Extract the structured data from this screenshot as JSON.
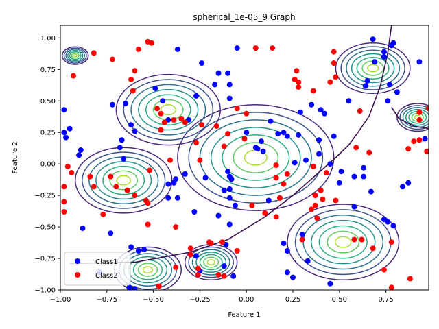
{
  "chart_data": {
    "type": "scatter",
    "title": "spherical_1e-05_9 Graph",
    "xlabel": "Feature 1",
    "ylabel": "Feature 2",
    "xlim": [
      -1.0,
      0.98
    ],
    "ylim": [
      -1.0,
      1.1
    ],
    "xticks": [
      -1.0,
      -0.75,
      -0.5,
      -0.25,
      0.0,
      0.25,
      0.5,
      0.75
    ],
    "yticks": [
      -1.0,
      -0.75,
      -0.5,
      -0.25,
      0.0,
      0.25,
      0.5,
      0.75,
      1.0
    ],
    "xtick_labels": [
      "−1.00",
      "−0.75",
      "−0.50",
      "−0.25",
      "0.00",
      "0.25",
      "0.50",
      "0.75"
    ],
    "ytick_labels": [
      "−1.00",
      "−0.75",
      "−0.50",
      "−0.25",
      "0.00",
      "0.25",
      "0.50",
      "0.75",
      "1.00"
    ],
    "grid": false,
    "legend_position": "lower-left",
    "colors": {
      "class1": "#0000ff",
      "class2": "#ff0000",
      "boundary": "#3b0f4f"
    },
    "contour_colors": [
      "#472a7a",
      "#3b528b",
      "#2c728e",
      "#21918c",
      "#28ae80",
      "#5ec962",
      "#addc30"
    ],
    "gaussian_components": [
      {
        "center": [
          0.05,
          0.05
        ],
        "radius": 0.42
      },
      {
        "center": [
          -0.42,
          0.43
        ],
        "radius": 0.28
      },
      {
        "center": [
          -0.66,
          -0.13
        ],
        "radius": 0.26
      },
      {
        "center": [
          0.52,
          -0.62
        ],
        "radius": 0.3
      },
      {
        "center": [
          0.68,
          0.76
        ],
        "radius": 0.2
      },
      {
        "center": [
          0.92,
          0.37
        ],
        "radius": 0.11
      },
      {
        "center": [
          -0.92,
          0.86
        ],
        "radius": 0.07
      },
      {
        "center": [
          -0.19,
          -0.78
        ],
        "radius": 0.14
      },
      {
        "center": [
          -0.53,
          -0.84
        ],
        "radius": 0.18
      }
    ],
    "decision_boundary": [
      [
        -0.95,
        -0.79
      ],
      [
        -0.6,
        -0.78
      ],
      [
        -0.3,
        -0.7
      ],
      [
        -0.1,
        -0.6
      ],
      [
        0.1,
        -0.42
      ],
      [
        0.25,
        -0.25
      ],
      [
        0.38,
        -0.08
      ],
      [
        0.48,
        0.05
      ],
      [
        0.55,
        0.15
      ],
      [
        0.6,
        0.25
      ],
      [
        0.66,
        0.38
      ],
      [
        0.72,
        0.62
      ],
      [
        0.76,
        0.88
      ],
      [
        0.78,
        1.1
      ]
    ],
    "boundary2": [
      [
        0.78,
        0.45
      ],
      [
        0.82,
        0.36
      ],
      [
        0.9,
        0.3
      ],
      [
        0.98,
        0.28
      ]
    ],
    "series": [
      {
        "name": "Class1",
        "color": "#0000ff",
        "points": [
          [
            -0.98,
            0.43
          ],
          [
            -0.98,
            0.25
          ],
          [
            -0.97,
            0.21
          ],
          [
            -0.95,
            0.28
          ],
          [
            -0.9,
            0.07
          ],
          [
            -0.89,
            0.11
          ],
          [
            -0.88,
            -0.51
          ],
          [
            -0.72,
            0.47
          ],
          [
            -0.68,
            0.13
          ],
          [
            -0.67,
            0.19
          ],
          [
            -0.65,
            0.48
          ],
          [
            -0.62,
            0.31
          ],
          [
            -0.6,
            0.26
          ],
          [
            -0.49,
            0.6
          ],
          [
            -0.45,
            0.5
          ],
          [
            -0.42,
            0.35
          ],
          [
            -0.37,
            0.91
          ],
          [
            -0.31,
            0.35
          ],
          [
            -0.27,
            0.54
          ],
          [
            -0.24,
            0.8
          ],
          [
            -0.22,
            -0.11
          ],
          [
            -0.17,
            0.63
          ],
          [
            -0.15,
            0.72
          ],
          [
            -0.1,
            0.72
          ],
          [
            -0.09,
            0.52
          ],
          [
            -0.09,
            0.63
          ],
          [
            -0.05,
            0.92
          ],
          [
            -0.38,
            -0.12
          ],
          [
            -0.39,
            -0.15
          ],
          [
            -0.42,
            -0.16
          ],
          [
            -0.42,
            -0.27
          ],
          [
            -0.37,
            -0.27
          ],
          [
            -0.33,
            -0.08
          ],
          [
            -0.28,
            -0.38
          ],
          [
            -0.15,
            -0.41
          ],
          [
            -0.12,
            -0.21
          ],
          [
            -0.1,
            -0.06
          ],
          [
            -0.09,
            -0.1
          ],
          [
            -0.08,
            -0.12
          ],
          [
            -0.09,
            -0.2
          ],
          [
            -0.09,
            -0.27
          ],
          [
            -0.06,
            -0.33
          ],
          [
            -0.09,
            -0.48
          ],
          [
            0.0,
            0.25
          ],
          [
            0.05,
            0.13
          ],
          [
            0.06,
            0.12
          ],
          [
            0.08,
            0.18
          ],
          [
            0.09,
            0.1
          ],
          [
            0.13,
            0.34
          ],
          [
            0.17,
            0.24
          ],
          [
            0.2,
            0.25
          ],
          [
            0.22,
            0.22
          ],
          [
            0.26,
            0.01
          ],
          [
            0.28,
            0.23
          ],
          [
            0.29,
            0.41
          ],
          [
            0.32,
            0.03
          ],
          [
            0.35,
            0.47
          ],
          [
            0.39,
            0.19
          ],
          [
            0.39,
            0.08
          ],
          [
            0.4,
            0.43
          ],
          [
            0.42,
            0.4
          ],
          [
            0.45,
            0.0
          ],
          [
            0.47,
            0.22
          ],
          [
            0.5,
            -0.15
          ],
          [
            0.51,
            -0.06
          ],
          [
            0.55,
            0.5
          ],
          [
            0.58,
            -0.1
          ],
          [
            0.63,
            -0.03
          ],
          [
            0.63,
            -0.1
          ],
          [
            0.65,
            0.66
          ],
          [
            0.64,
            0.62
          ],
          [
            0.67,
            -0.22
          ],
          [
            0.68,
            0.99
          ],
          [
            0.69,
            0.81
          ],
          [
            0.74,
            0.89
          ],
          [
            0.74,
            0.85
          ],
          [
            0.76,
            0.5
          ],
          [
            0.77,
            0.63
          ],
          [
            0.78,
            0.94
          ],
          [
            0.79,
            0.96
          ],
          [
            0.81,
            0.57
          ],
          [
            0.84,
            -0.18
          ],
          [
            0.87,
            -0.15
          ],
          [
            0.93,
            0.81
          ],
          [
            0.96,
            0.2
          ],
          [
            0.45,
            -0.95
          ],
          [
            0.58,
            -0.34
          ],
          [
            0.74,
            -0.44
          ],
          [
            0.76,
            -0.46
          ],
          [
            0.79,
            -0.49
          ],
          [
            0.2,
            -0.63
          ],
          [
            0.22,
            -0.69
          ],
          [
            0.25,
            -0.9
          ],
          [
            0.3,
            -0.56
          ],
          [
            0.33,
            -0.77
          ],
          [
            0.22,
            -0.86
          ],
          [
            0.12,
            -0.29
          ],
          [
            -0.07,
            -0.89
          ],
          [
            -0.11,
            -0.64
          ],
          [
            -0.12,
            -0.81
          ],
          [
            -0.25,
            -0.85
          ],
          [
            -0.27,
            -0.73
          ],
          [
            -0.38,
            -0.12
          ],
          [
            -0.55,
            -0.68
          ],
          [
            -0.58,
            -0.69
          ],
          [
            -0.62,
            -0.66
          ],
          [
            -0.63,
            -0.98
          ],
          [
            -0.6,
            -0.99
          ],
          [
            -0.73,
            -0.55
          ],
          [
            -0.79,
            -0.86
          ],
          [
            -0.66,
            0.04
          ]
        ]
      },
      {
        "name": "Class2",
        "color": "#ff0000",
        "points": [
          [
            -0.96,
            -0.02
          ],
          [
            -0.98,
            -0.18
          ],
          [
            -0.98,
            -0.3
          ],
          [
            -0.98,
            -0.38
          ],
          [
            -0.94,
            -0.07
          ],
          [
            -0.84,
            -0.1
          ],
          [
            -0.82,
            -0.18
          ],
          [
            -0.77,
            -0.4
          ],
          [
            -0.73,
            -0.1
          ],
          [
            -0.7,
            -0.18
          ],
          [
            -0.64,
            -0.21
          ],
          [
            -0.6,
            -0.25
          ],
          [
            -0.52,
            -0.05
          ],
          [
            -0.54,
            -0.29
          ],
          [
            -0.53,
            -0.31
          ],
          [
            -0.53,
            -0.48
          ],
          [
            -0.38,
            -0.5
          ],
          [
            -0.41,
            0.03
          ],
          [
            -0.35,
            0.36
          ],
          [
            -0.33,
            0.33
          ],
          [
            -0.27,
            0.17
          ],
          [
            -0.24,
            0.31
          ],
          [
            -0.25,
            0.03
          ],
          [
            -0.16,
            0.3
          ],
          [
            -0.12,
            0.14
          ],
          [
            -0.1,
            0.24
          ],
          [
            -0.05,
            0.44
          ],
          [
            0.0,
            0.4
          ],
          [
            -0.01,
            0.2
          ],
          [
            0.05,
            0.92
          ],
          [
            0.14,
            0.92
          ],
          [
            0.16,
            -0.01
          ],
          [
            0.16,
            -0.11
          ],
          [
            0.18,
            -0.27
          ],
          [
            0.2,
            -0.16
          ],
          [
            0.22,
            -0.08
          ],
          [
            0.26,
            0.67
          ],
          [
            0.27,
            0.74
          ],
          [
            0.28,
            0.61
          ],
          [
            0.28,
            0.65
          ],
          [
            0.36,
            0.58
          ],
          [
            0.36,
            -0.02
          ],
          [
            0.37,
            -0.25
          ],
          [
            0.37,
            -0.33
          ],
          [
            0.38,
            -0.43
          ],
          [
            0.4,
            -0.21
          ],
          [
            0.41,
            -0.28
          ],
          [
            0.43,
            -0.07
          ],
          [
            0.45,
            0.65
          ],
          [
            0.47,
            0.89
          ],
          [
            0.47,
            0.8
          ],
          [
            0.48,
            -0.29
          ],
          [
            0.48,
            0.69
          ],
          [
            0.59,
            0.13
          ],
          [
            0.61,
            0.42
          ],
          [
            0.66,
            0.09
          ],
          [
            0.58,
            -0.6
          ],
          [
            0.62,
            -0.6
          ],
          [
            0.68,
            -0.67
          ],
          [
            0.74,
            -0.84
          ],
          [
            0.78,
            -0.62
          ],
          [
            0.78,
            -0.98
          ],
          [
            0.87,
            0.12
          ],
          [
            0.88,
            -0.91
          ],
          [
            0.93,
            0.35
          ],
          [
            0.93,
            0.41
          ],
          [
            0.97,
            0.1
          ],
          [
            0.98,
            0.44
          ],
          [
            0.9,
            0.18
          ],
          [
            0.93,
            0.19
          ],
          [
            -0.82,
            0.88
          ],
          [
            -0.93,
            0.7
          ],
          [
            -0.72,
            0.83
          ],
          [
            -0.62,
            0.67
          ],
          [
            -0.61,
            0.58
          ],
          [
            -0.6,
            0.74
          ],
          [
            -0.58,
            0.91
          ],
          [
            -0.53,
            0.97
          ],
          [
            -0.51,
            0.96
          ],
          [
            -0.48,
            0.44
          ],
          [
            -0.46,
            0.4
          ],
          [
            -0.46,
            0.27
          ],
          [
            -0.44,
            0.33
          ],
          [
            -0.39,
            0.35
          ],
          [
            -0.3,
            -0.67
          ],
          [
            -0.3,
            -0.72
          ],
          [
            -0.2,
            -0.62
          ],
          [
            -0.13,
            -0.62
          ],
          [
            -0.15,
            -0.88
          ],
          [
            -0.12,
            -0.89
          ],
          [
            -0.05,
            -0.69
          ],
          [
            -0.26,
            -0.88
          ],
          [
            -0.26,
            -0.83
          ],
          [
            -0.38,
            -0.82
          ],
          [
            -0.47,
            -0.97
          ],
          [
            -0.19,
            -0.63
          ],
          [
            0.03,
            -0.33
          ],
          [
            0.1,
            -0.39
          ],
          [
            0.16,
            -0.42
          ],
          [
            0.3,
            -0.6
          ],
          [
            0.35,
            -0.36
          ]
        ]
      }
    ]
  }
}
